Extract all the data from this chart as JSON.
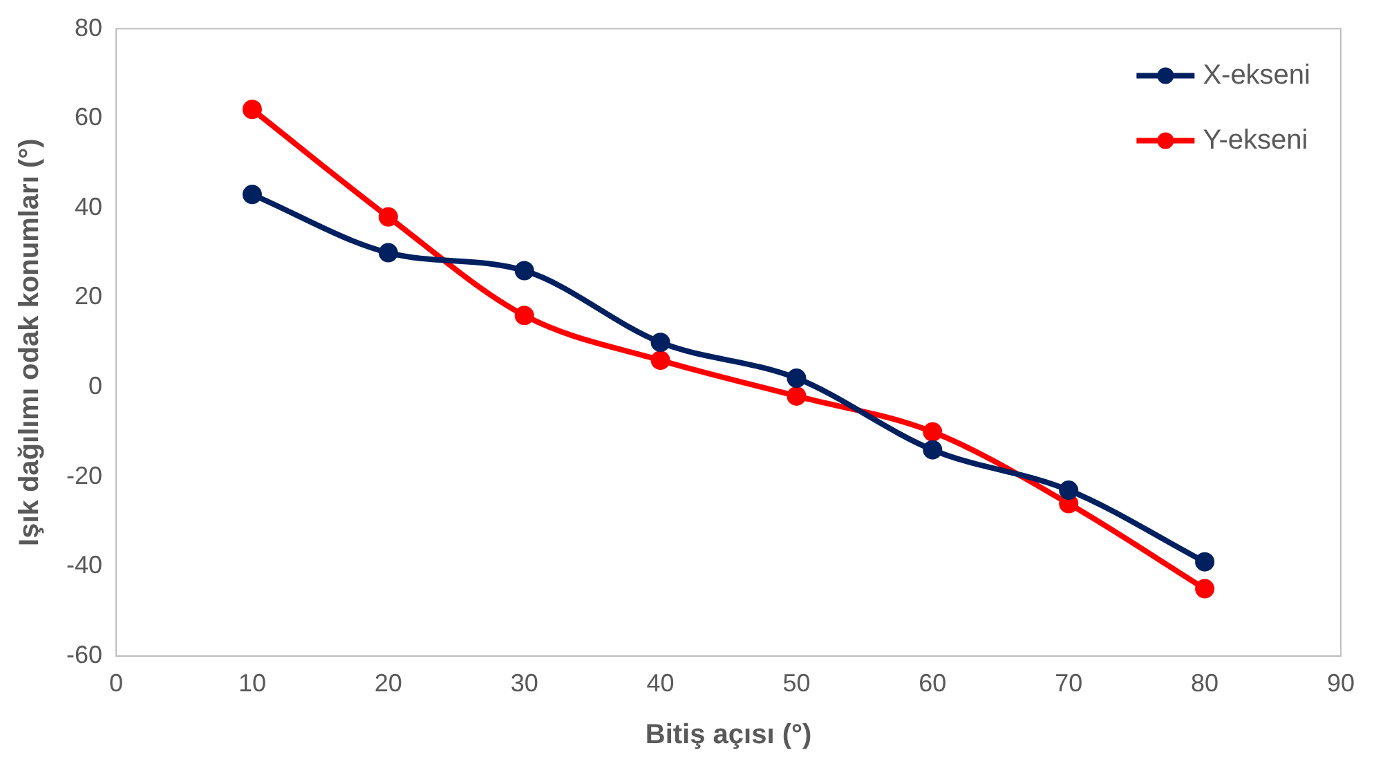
{
  "chart_data": {
    "type": "line",
    "xlabel": "Bitiş açısı (°)",
    "ylabel": "Işık dağılımı odak konumları (°)",
    "x": [
      10,
      20,
      30,
      40,
      50,
      60,
      70,
      80
    ],
    "series": [
      {
        "name": "X-ekseni",
        "color": "#002060",
        "values": [
          43,
          30,
          26,
          10,
          2,
          -14,
          -23,
          -39
        ]
      },
      {
        "name": "Y-ekseni",
        "color": "#ff0000",
        "values": [
          62,
          38,
          16,
          6,
          -2,
          -10,
          -26,
          -45
        ]
      }
    ],
    "xlim": [
      0,
      90
    ],
    "xticks": [
      0,
      10,
      20,
      30,
      40,
      50,
      60,
      70,
      80,
      90
    ],
    "ylim": [
      -60,
      80
    ],
    "yticks": [
      -60,
      -40,
      -20,
      0,
      20,
      40,
      60,
      80
    ],
    "grid": false,
    "legend": "top right",
    "marker": "circle",
    "line_style": "solid"
  }
}
